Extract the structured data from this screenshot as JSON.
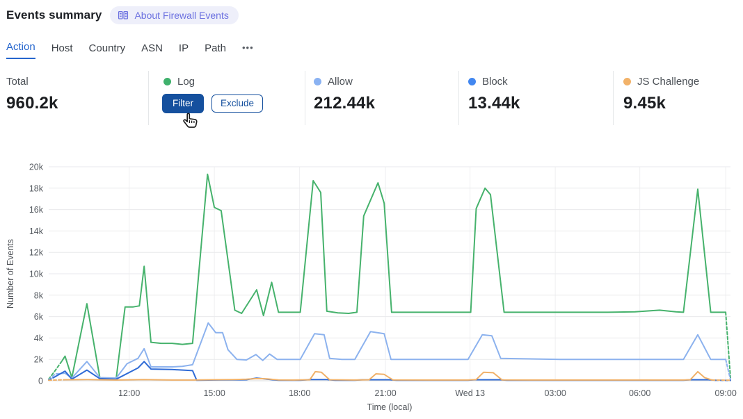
{
  "header": {
    "title": "Events summary",
    "badge": {
      "icon": "open-book-icon",
      "label": "About Firewall Events",
      "bg": "#eeeffa",
      "fg": "#6b70e0"
    }
  },
  "tabs": {
    "items": [
      {
        "label": "Action",
        "active": true
      },
      {
        "label": "Host",
        "active": false
      },
      {
        "label": "Country",
        "active": false
      },
      {
        "label": "ASN",
        "active": false
      },
      {
        "label": "IP",
        "active": false
      },
      {
        "label": "Path",
        "active": false
      }
    ],
    "more_label": "•••",
    "active_color": "#2565cd"
  },
  "stats": {
    "columns": [
      {
        "label": "Total",
        "value": "960.2k"
      },
      {
        "label": "Log",
        "dot_color": "#3fb16c",
        "buttons": [
          {
            "label": "Filter",
            "style": "primary"
          },
          {
            "label": "Exclude",
            "style": "secondary"
          }
        ]
      },
      {
        "label": "Allow",
        "value": "212.44k",
        "dot_color": "#8ab2f2"
      },
      {
        "label": "Block",
        "value": "13.44k",
        "dot_color": "#4287f0"
      },
      {
        "label": "JS Challenge",
        "value": "9.45k",
        "dot_color": "#f2b269"
      }
    ],
    "button_blue": "#15509e"
  },
  "chart_data": {
    "type": "line",
    "xlabel": "Time (local)",
    "ylabel": "Number of Events",
    "ylim": [
      0,
      20000
    ],
    "grid": true,
    "values_unit": "thousands of events",
    "x_axis_note": "x given as fraction 0-1 of plot width (~24h span, Tue ~09:10 to Wed 13 ~09:10)",
    "y_ticks": [
      "0",
      "2k",
      "4k",
      "6k",
      "8k",
      "10k",
      "12k",
      "14k",
      "16k",
      "18k",
      "20k"
    ],
    "x_ticks": [
      {
        "label": "12:00",
        "f": 0.118
      },
      {
        "label": "15:00",
        "f": 0.243
      },
      {
        "label": "18:00",
        "f": 0.368
      },
      {
        "label": "21:00",
        "f": 0.494
      },
      {
        "label": "Wed 13",
        "f": 0.618
      },
      {
        "label": "03:00",
        "f": 0.743
      },
      {
        "label": "06:00",
        "f": 0.867
      },
      {
        "label": "09:00",
        "f": 0.993
      }
    ],
    "series": [
      {
        "name": "Log",
        "color": "#46b26c",
        "dashed_head": 2,
        "dashed_tail": 1,
        "points": [
          [
            0.0,
            0.15
          ],
          [
            0.01,
            1.0
          ],
          [
            0.02,
            1.9
          ],
          [
            0.024,
            2.3
          ],
          [
            0.034,
            0.3
          ],
          [
            0.056,
            7.2
          ],
          [
            0.075,
            0.3
          ],
          [
            0.09,
            0.2
          ],
          [
            0.099,
            0.2
          ],
          [
            0.112,
            6.9
          ],
          [
            0.124,
            6.9
          ],
          [
            0.133,
            7.0
          ],
          [
            0.14,
            10.7
          ],
          [
            0.15,
            3.6
          ],
          [
            0.165,
            3.5
          ],
          [
            0.181,
            3.5
          ],
          [
            0.196,
            3.4
          ],
          [
            0.211,
            3.5
          ],
          [
            0.233,
            19.3
          ],
          [
            0.243,
            16.2
          ],
          [
            0.253,
            15.9
          ],
          [
            0.273,
            6.6
          ],
          [
            0.283,
            6.3
          ],
          [
            0.305,
            8.5
          ],
          [
            0.315,
            6.1
          ],
          [
            0.327,
            9.2
          ],
          [
            0.337,
            6.4
          ],
          [
            0.353,
            6.4
          ],
          [
            0.369,
            6.4
          ],
          [
            0.388,
            18.7
          ],
          [
            0.399,
            17.6
          ],
          [
            0.408,
            6.5
          ],
          [
            0.424,
            6.35
          ],
          [
            0.44,
            6.3
          ],
          [
            0.452,
            6.4
          ],
          [
            0.462,
            15.4
          ],
          [
            0.483,
            18.5
          ],
          [
            0.492,
            16.6
          ],
          [
            0.503,
            6.4
          ],
          [
            0.53,
            6.4
          ],
          [
            0.56,
            6.4
          ],
          [
            0.59,
            6.4
          ],
          [
            0.619,
            6.4
          ],
          [
            0.627,
            16.1
          ],
          [
            0.64,
            18.0
          ],
          [
            0.648,
            17.4
          ],
          [
            0.668,
            6.4
          ],
          [
            0.7,
            6.4
          ],
          [
            0.74,
            6.4
          ],
          [
            0.78,
            6.4
          ],
          [
            0.82,
            6.4
          ],
          [
            0.86,
            6.45
          ],
          [
            0.896,
            6.6
          ],
          [
            0.92,
            6.45
          ],
          [
            0.931,
            6.4
          ],
          [
            0.952,
            17.9
          ],
          [
            0.971,
            6.4
          ],
          [
            0.985,
            6.4
          ],
          [
            0.993,
            6.4
          ],
          [
            1.0,
            0.3
          ]
        ]
      },
      {
        "name": "Allow",
        "color": "#8cb2ee",
        "dashed_head": 2,
        "dashed_tail": 1,
        "points": [
          [
            0.0,
            0.1
          ],
          [
            0.01,
            0.65
          ],
          [
            0.024,
            0.7
          ],
          [
            0.034,
            0.25
          ],
          [
            0.056,
            1.8
          ],
          [
            0.075,
            0.3
          ],
          [
            0.099,
            0.25
          ],
          [
            0.115,
            1.6
          ],
          [
            0.131,
            2.1
          ],
          [
            0.14,
            3.0
          ],
          [
            0.15,
            1.3
          ],
          [
            0.165,
            1.3
          ],
          [
            0.181,
            1.3
          ],
          [
            0.196,
            1.35
          ],
          [
            0.211,
            1.5
          ],
          [
            0.234,
            5.4
          ],
          [
            0.245,
            4.5
          ],
          [
            0.255,
            4.5
          ],
          [
            0.263,
            2.9
          ],
          [
            0.276,
            2.0
          ],
          [
            0.29,
            1.95
          ],
          [
            0.304,
            2.45
          ],
          [
            0.314,
            1.9
          ],
          [
            0.324,
            2.5
          ],
          [
            0.335,
            2.0
          ],
          [
            0.353,
            2.0
          ],
          [
            0.369,
            2.0
          ],
          [
            0.39,
            4.4
          ],
          [
            0.404,
            4.3
          ],
          [
            0.412,
            2.1
          ],
          [
            0.43,
            2.0
          ],
          [
            0.449,
            2.0
          ],
          [
            0.472,
            4.6
          ],
          [
            0.492,
            4.4
          ],
          [
            0.502,
            2.0
          ],
          [
            0.55,
            2.0
          ],
          [
            0.6,
            2.0
          ],
          [
            0.615,
            2.0
          ],
          [
            0.636,
            4.3
          ],
          [
            0.65,
            4.2
          ],
          [
            0.663,
            2.1
          ],
          [
            0.7,
            2.05
          ],
          [
            0.75,
            2.0
          ],
          [
            0.8,
            2.0
          ],
          [
            0.85,
            2.0
          ],
          [
            0.9,
            2.0
          ],
          [
            0.931,
            2.0
          ],
          [
            0.952,
            4.3
          ],
          [
            0.971,
            2.0
          ],
          [
            0.993,
            2.0
          ],
          [
            1.0,
            0.1
          ]
        ]
      },
      {
        "name": "Block",
        "color": "#2f6bd6",
        "dashed_head": 1,
        "dashed_tail": 1,
        "points": [
          [
            0.0,
            0.05
          ],
          [
            0.01,
            0.4
          ],
          [
            0.024,
            0.9
          ],
          [
            0.034,
            0.15
          ],
          [
            0.056,
            1.0
          ],
          [
            0.075,
            0.2
          ],
          [
            0.099,
            0.15
          ],
          [
            0.131,
            1.2
          ],
          [
            0.14,
            1.8
          ],
          [
            0.15,
            1.1
          ],
          [
            0.181,
            1.05
          ],
          [
            0.211,
            0.95
          ],
          [
            0.217,
            0.05
          ],
          [
            0.25,
            0.08
          ],
          [
            0.29,
            0.1
          ],
          [
            0.305,
            0.25
          ],
          [
            0.32,
            0.15
          ],
          [
            0.337,
            0.05
          ],
          [
            0.369,
            0.05
          ],
          [
            0.383,
            0.12
          ],
          [
            0.408,
            0.12
          ],
          [
            0.42,
            0.05
          ],
          [
            0.449,
            0.05
          ],
          [
            0.46,
            0.1
          ],
          [
            0.5,
            0.1
          ],
          [
            0.51,
            0.05
          ],
          [
            0.615,
            0.05
          ],
          [
            0.625,
            0.1
          ],
          [
            0.662,
            0.1
          ],
          [
            0.672,
            0.05
          ],
          [
            0.8,
            0.05
          ],
          [
            0.931,
            0.05
          ],
          [
            0.941,
            0.1
          ],
          [
            0.968,
            0.1
          ],
          [
            0.978,
            0.05
          ],
          [
            1.0,
            0.03
          ]
        ]
      },
      {
        "name": "JS Challenge",
        "color": "#f0b169",
        "dashed_head": 1,
        "dashed_tail": 1,
        "points": [
          [
            0.0,
            0.05
          ],
          [
            0.024,
            0.1
          ],
          [
            0.056,
            0.12
          ],
          [
            0.099,
            0.07
          ],
          [
            0.14,
            0.12
          ],
          [
            0.181,
            0.07
          ],
          [
            0.211,
            0.07
          ],
          [
            0.24,
            0.1
          ],
          [
            0.27,
            0.12
          ],
          [
            0.29,
            0.15
          ],
          [
            0.305,
            0.2
          ],
          [
            0.32,
            0.18
          ],
          [
            0.337,
            0.08
          ],
          [
            0.36,
            0.07
          ],
          [
            0.383,
            0.1
          ],
          [
            0.391,
            0.85
          ],
          [
            0.4,
            0.8
          ],
          [
            0.412,
            0.1
          ],
          [
            0.449,
            0.07
          ],
          [
            0.47,
            0.1
          ],
          [
            0.48,
            0.65
          ],
          [
            0.492,
            0.6
          ],
          [
            0.505,
            0.08
          ],
          [
            0.56,
            0.07
          ],
          [
            0.615,
            0.07
          ],
          [
            0.627,
            0.12
          ],
          [
            0.638,
            0.8
          ],
          [
            0.652,
            0.75
          ],
          [
            0.665,
            0.08
          ],
          [
            0.75,
            0.07
          ],
          [
            0.85,
            0.07
          ],
          [
            0.931,
            0.07
          ],
          [
            0.941,
            0.1
          ],
          [
            0.952,
            0.85
          ],
          [
            0.962,
            0.3
          ],
          [
            0.973,
            0.07
          ],
          [
            1.0,
            0.05
          ]
        ]
      }
    ],
    "legend_position": "in stats row above chart",
    "axis_text_color": "#565b61",
    "gridline_color": "#e9eaec"
  }
}
